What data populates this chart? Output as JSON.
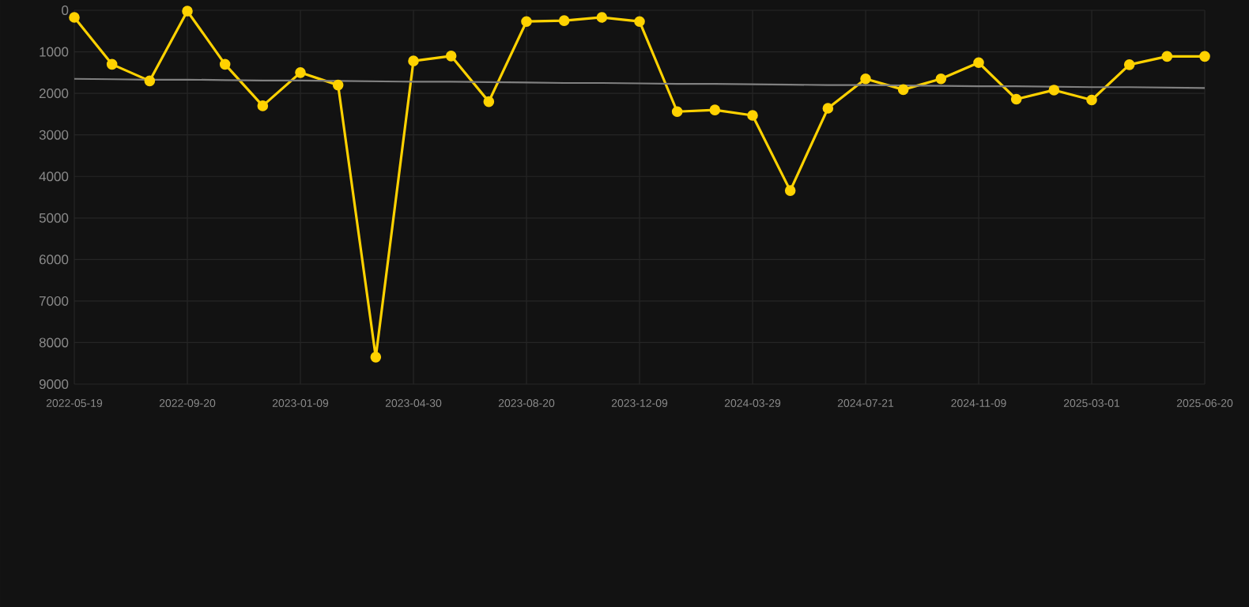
{
  "chart_data": {
    "type": "line",
    "categories": [
      "2022-05-19",
      null,
      null,
      "2022-09-20",
      null,
      null,
      "2023-01-09",
      null,
      null,
      "2023-04-30",
      null,
      null,
      "2023-08-20",
      null,
      null,
      "2023-12-09",
      null,
      null,
      "2024-03-29",
      null,
      null,
      "2024-07-21",
      null,
      null,
      "2024-11-09",
      null,
      null,
      "2025-03-01",
      null,
      null,
      "2025-06-20"
    ],
    "series": [
      {
        "color": "#ffd200",
        "values": [
          170,
          1300,
          1700,
          20,
          1300,
          2300,
          1500,
          1800,
          8350,
          1220,
          1100,
          2200,
          270,
          250,
          170,
          270,
          2440,
          2400,
          2530,
          4340,
          2360,
          1650,
          1910,
          1650,
          1260,
          2140,
          1920,
          2160,
          1310,
          1110,
          1110
        ]
      },
      {
        "type": "line",
        "color": "#808080",
        "marker": "none",
        "values": [
          1650,
          1660,
          1670,
          1670,
          1680,
          1690,
          1690,
          1700,
          1710,
          1720,
          1720,
          1730,
          1740,
          1750,
          1750,
          1760,
          1770,
          1770,
          1780,
          1790,
          1800,
          1800,
          1810,
          1820,
          1830,
          1830,
          1840,
          1850,
          1850,
          1860,
          1870
        ]
      }
    ],
    "ylim": [
      9000,
      0
    ],
    "yticks": [
      0,
      1000,
      2000,
      3000,
      4000,
      5000,
      6000,
      7000,
      8000,
      9000
    ],
    "grid": true,
    "marker": "circle",
    "line_style": "solid"
  }
}
